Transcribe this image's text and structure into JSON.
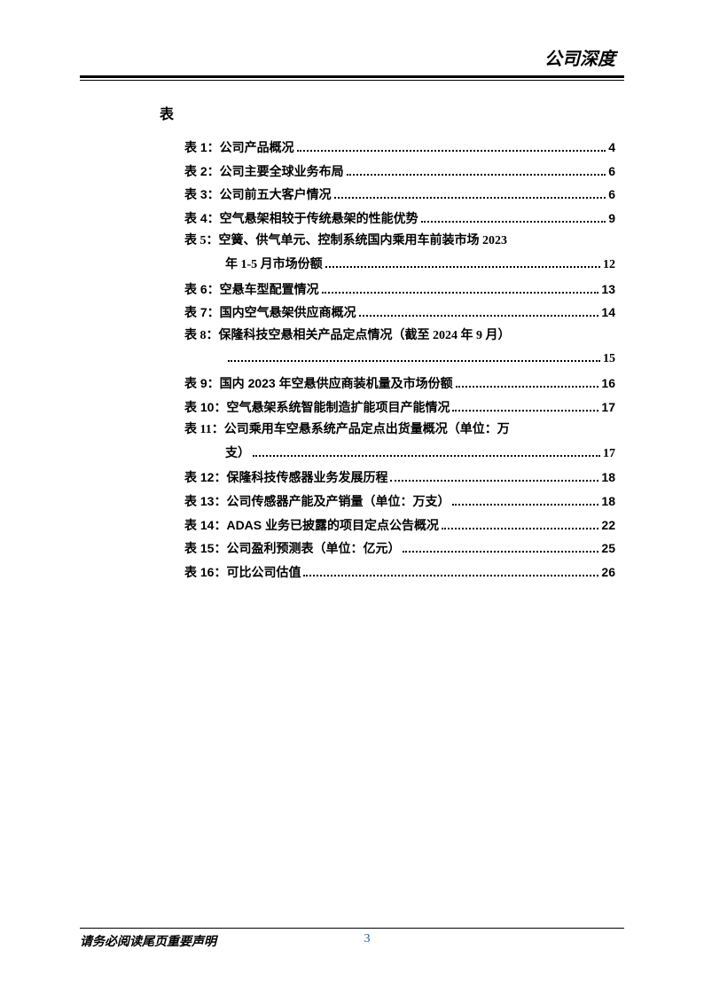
{
  "header": {
    "title": "公司深度"
  },
  "section": {
    "heading": "表"
  },
  "toc": [
    {
      "label": "表 1：公司产品概况",
      "page": "4",
      "wrap": false
    },
    {
      "label": "表 2：公司主要全球业务布局",
      "page": "6",
      "wrap": false
    },
    {
      "label": "表 3：公司前五大客户情况",
      "page": "6",
      "wrap": false
    },
    {
      "label": "表 4：空气悬架相较于传统悬架的性能优势",
      "page": "9",
      "wrap": false
    },
    {
      "label": "表 5：空簧、供气单元、控制系统国内乘用车前装市场 2023",
      "cont": "年 1-5 月市场份额",
      "page": "12",
      "wrap": true
    },
    {
      "label": "表 6：空悬车型配置情况",
      "page": "13",
      "wrap": false
    },
    {
      "label": "表 7：国内空气悬架供应商概况",
      "page": "14",
      "wrap": false
    },
    {
      "label": "表 8：保隆科技空悬相关产品定点情况（截至 2024 年 9 月）",
      "cont": "",
      "page": "15",
      "wrap": true
    },
    {
      "label": "表 9：国内 2023 年空悬供应商装机量及市场份额",
      "page": "16",
      "wrap": false
    },
    {
      "label": "表 10：空气悬架系统智能制造扩能项目产能情况",
      "page": "17",
      "wrap": false
    },
    {
      "label": "表 11：公司乘用车空悬系统产品定点出货量概况（单位：万",
      "cont": "支）",
      "page": "17",
      "wrap": true
    },
    {
      "label": "表 12：保隆科技传感器业务发展历程",
      "page": "18",
      "wrap": false
    },
    {
      "label": "表 13：公司传感器产能及产销量（单位：万支）",
      "page": "18",
      "wrap": false
    },
    {
      "label": "表 14：ADAS 业务已披露的项目定点公告概况",
      "page": "22",
      "wrap": false
    },
    {
      "label": "表 15：公司盈利预测表（单位：亿元）",
      "page": "25",
      "wrap": false
    },
    {
      "label": "表 16：可比公司估值",
      "page": "26",
      "wrap": false
    }
  ],
  "footer": {
    "disclaimer": "请务必阅读尾页重要声明",
    "pageNumber": "3"
  },
  "colors": {
    "text": "#000000",
    "pageNumber": "#1e5aa8",
    "background": "#ffffff"
  }
}
